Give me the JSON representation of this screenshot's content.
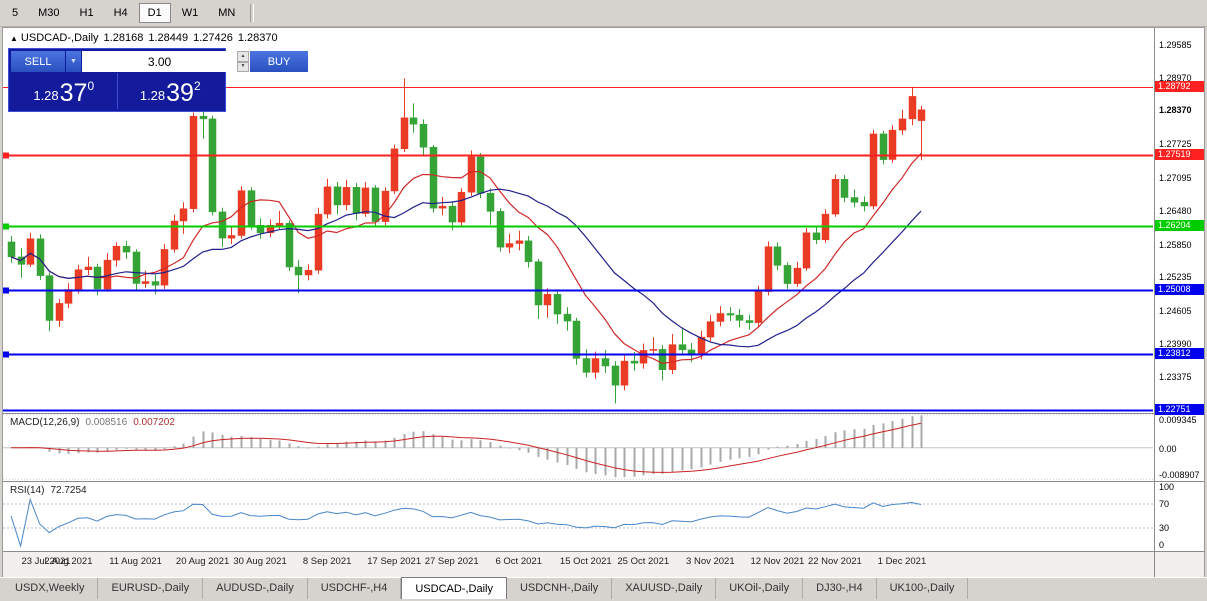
{
  "toolbar": {
    "periods": [
      "5",
      "M30",
      "H1",
      "H4",
      "D1",
      "W1",
      "MN"
    ],
    "active": "D1"
  },
  "header": {
    "collapse": "▲",
    "title": "USDCAD-,Daily",
    "o": "1.28168",
    "h": "1.28449",
    "l": "1.27426",
    "c": "1.28370"
  },
  "trade": {
    "sell": "SELL",
    "buy": "BUY",
    "lot": "3.00",
    "sell_prefix": "1.28",
    "sell_big": "37",
    "sell_sup": "0",
    "buy_prefix": "1.28",
    "buy_big": "39",
    "buy_sup": "2"
  },
  "colors": {
    "candle_up": "#ea3b24",
    "candle_down": "#36a336",
    "ma_fast": "#d02828",
    "ma_slow": "#20208c",
    "macd_hist": "#a8a8a8",
    "macd_signal": "#cc2222",
    "rsi_line": "#4a86c8",
    "hline_red": "#ff2020",
    "hline_green": "#00cc00",
    "hline_blue": "#0000ee",
    "panel_bg": "#141a9c",
    "button_blue": "#2e5ed0"
  },
  "tabs": {
    "active_index": 4,
    "items": [
      "USDX,Weekly",
      "EURUSD-,Daily",
      "AUDUSD-,Daily",
      "USDCHF-,H4",
      "USDCAD-,Daily",
      "USDCNH-,Daily",
      "XAUUSD-,Daily",
      "UKOil-,Daily",
      "DJ30-,H4",
      "UK100-,Daily"
    ]
  },
  "chart_data": {
    "type": "candlestick",
    "title": "USDCAD-,Daily",
    "main": {
      "price_max": 1.299,
      "price_min": 1.227,
      "ticks": [
        "1.29585",
        "1.28970",
        "1.27725",
        "1.27095",
        "1.26480",
        "1.25850",
        "1.25235",
        "1.24605",
        "1.23990",
        "1.23375"
      ],
      "current_price": "1.28370",
      "hlines": [
        {
          "value": 1.28792,
          "label": "1.28792",
          "color": "red",
          "width": 1,
          "handle": false
        },
        {
          "value": 1.27519,
          "label": "1.27519",
          "color": "red",
          "width": 2,
          "handle": true
        },
        {
          "value": 1.26204,
          "label": "1.26204",
          "color": "green",
          "width": 2,
          "handle": true
        },
        {
          "value": 1.25008,
          "label": "1.25008",
          "color": "blue",
          "width": 2,
          "handle": true
        },
        {
          "value": 1.23812,
          "label": "1.23812",
          "color": "blue",
          "width": 2,
          "handle": true
        },
        {
          "value": 1.22751,
          "label": "1.22751",
          "color": "blue",
          "width": 2,
          "handle": false
        }
      ],
      "x_labels": [
        {
          "i": 0,
          "t": "23 Jul 2021"
        },
        {
          "i": 6,
          "t": "2 Aug 2021"
        },
        {
          "i": 13,
          "t": "11 Aug 2021"
        },
        {
          "i": 20,
          "t": "20 Aug 2021"
        },
        {
          "i": 26,
          "t": "30 Aug 2021"
        },
        {
          "i": 33,
          "t": "8 Sep 2021"
        },
        {
          "i": 40,
          "t": "17 Sep 2021"
        },
        {
          "i": 46,
          "t": "27 Sep 2021"
        },
        {
          "i": 53,
          "t": "6 Oct 2021"
        },
        {
          "i": 60,
          "t": "15 Oct 2021"
        },
        {
          "i": 66,
          "t": "25 Oct 2021"
        },
        {
          "i": 73,
          "t": "3 Nov 2021"
        },
        {
          "i": 80,
          "t": "12 Nov 2021"
        },
        {
          "i": 86,
          "t": "22 Nov 2021"
        },
        {
          "i": 93,
          "t": "1 Dec 2021"
        }
      ],
      "ma": [
        {
          "period": 10,
          "color_key": "ma_fast"
        },
        {
          "period": 20,
          "color_key": "ma_slow"
        }
      ],
      "ohlc": [
        [
          1.259,
          1.2601,
          1.2551,
          1.2562
        ],
        [
          1.2562,
          1.2578,
          1.2523,
          1.2548
        ],
        [
          1.2548,
          1.2607,
          1.2543,
          1.2596
        ],
        [
          1.2596,
          1.2604,
          1.2519,
          1.2527
        ],
        [
          1.2527,
          1.2533,
          1.2423,
          1.2443
        ],
        [
          1.2443,
          1.2483,
          1.2431,
          1.2475
        ],
        [
          1.2475,
          1.2513,
          1.2466,
          1.2501
        ],
        [
          1.2501,
          1.2547,
          1.2493,
          1.2538
        ],
        [
          1.2538,
          1.2562,
          1.2528,
          1.2543
        ],
        [
          1.2543,
          1.2549,
          1.249,
          1.2502
        ],
        [
          1.2502,
          1.2569,
          1.2497,
          1.2556
        ],
        [
          1.2556,
          1.2589,
          1.2544,
          1.2582
        ],
        [
          1.2582,
          1.2592,
          1.2558,
          1.2571
        ],
        [
          1.2571,
          1.2576,
          1.25,
          1.2512
        ],
        [
          1.2512,
          1.2536,
          1.2504,
          1.2516
        ],
        [
          1.2516,
          1.2528,
          1.2492,
          1.2509
        ],
        [
          1.2509,
          1.2586,
          1.2502,
          1.2576
        ],
        [
          1.2576,
          1.2641,
          1.257,
          1.2629
        ],
        [
          1.2629,
          1.2664,
          1.2605,
          1.2652
        ],
        [
          1.2652,
          1.2832,
          1.2645,
          1.2825
        ],
        [
          1.2825,
          1.2845,
          1.2783,
          1.282
        ],
        [
          1.282,
          1.2826,
          1.264,
          1.2646
        ],
        [
          1.2646,
          1.2654,
          1.258,
          1.2597
        ],
        [
          1.2597,
          1.2618,
          1.2586,
          1.2602
        ],
        [
          1.2602,
          1.2694,
          1.2596,
          1.2686
        ],
        [
          1.2686,
          1.2692,
          1.2613,
          1.2621
        ],
        [
          1.2621,
          1.2634,
          1.2596,
          1.2607
        ],
        [
          1.2607,
          1.2632,
          1.2599,
          1.2621
        ],
        [
          1.2621,
          1.2648,
          1.2612,
          1.2625
        ],
        [
          1.2625,
          1.263,
          1.2535,
          1.2543
        ],
        [
          1.2543,
          1.2556,
          1.2494,
          1.2528
        ],
        [
          1.2528,
          1.2548,
          1.2518,
          1.2537
        ],
        [
          1.2537,
          1.2654,
          1.253,
          1.2642
        ],
        [
          1.2642,
          1.2708,
          1.2634,
          1.2693
        ],
        [
          1.2693,
          1.2702,
          1.2642,
          1.2659
        ],
        [
          1.2659,
          1.2706,
          1.2649,
          1.2692
        ],
        [
          1.2692,
          1.27,
          1.263,
          1.2643
        ],
        [
          1.2643,
          1.2702,
          1.2637,
          1.2691
        ],
        [
          1.2691,
          1.2696,
          1.2618,
          1.2628
        ],
        [
          1.2628,
          1.2692,
          1.2621,
          1.2685
        ],
        [
          1.2685,
          1.2772,
          1.2679,
          1.2764
        ],
        [
          1.2764,
          1.2896,
          1.2758,
          1.2822
        ],
        [
          1.2822,
          1.2849,
          1.2794,
          1.281
        ],
        [
          1.281,
          1.2819,
          1.2752,
          1.2767
        ],
        [
          1.2767,
          1.2771,
          1.2645,
          1.2653
        ],
        [
          1.2653,
          1.2674,
          1.264,
          1.2657
        ],
        [
          1.2657,
          1.2666,
          1.2612,
          1.2627
        ],
        [
          1.2627,
          1.269,
          1.2619,
          1.2683
        ],
        [
          1.2683,
          1.2761,
          1.2676,
          1.2749
        ],
        [
          1.2749,
          1.2756,
          1.2672,
          1.2681
        ],
        [
          1.2681,
          1.269,
          1.2622,
          1.2647
        ],
        [
          1.2647,
          1.2653,
          1.2572,
          1.258
        ],
        [
          1.258,
          1.2605,
          1.2569,
          1.2587
        ],
        [
          1.2587,
          1.2611,
          1.2574,
          1.2592
        ],
        [
          1.2592,
          1.2601,
          1.2542,
          1.2553
        ],
        [
          1.2553,
          1.2558,
          1.2446,
          1.2472
        ],
        [
          1.2472,
          1.2503,
          1.2448,
          1.2492
        ],
        [
          1.2492,
          1.25,
          1.2437,
          1.2455
        ],
        [
          1.2455,
          1.2468,
          1.2424,
          1.2442
        ],
        [
          1.2442,
          1.2448,
          1.236,
          1.2372
        ],
        [
          1.2372,
          1.2389,
          1.2337,
          1.2346
        ],
        [
          1.2346,
          1.2385,
          1.2334,
          1.2372
        ],
        [
          1.2372,
          1.2388,
          1.2345,
          1.2358
        ],
        [
          1.2358,
          1.2367,
          1.2288,
          1.2322
        ],
        [
          1.2322,
          1.2378,
          1.2312,
          1.2367
        ],
        [
          1.2367,
          1.2384,
          1.2349,
          1.2363
        ],
        [
          1.2363,
          1.24,
          1.2353,
          1.2387
        ],
        [
          1.2387,
          1.2412,
          1.2377,
          1.2389
        ],
        [
          1.2389,
          1.2397,
          1.2331,
          1.2351
        ],
        [
          1.2351,
          1.2418,
          1.2343,
          1.2398
        ],
        [
          1.2398,
          1.243,
          1.2379,
          1.2388
        ],
        [
          1.2388,
          1.2401,
          1.2365,
          1.2378
        ],
        [
          1.2378,
          1.2424,
          1.237,
          1.2412
        ],
        [
          1.2412,
          1.2453,
          1.2404,
          1.2441
        ],
        [
          1.2441,
          1.247,
          1.2432,
          1.2456
        ],
        [
          1.2456,
          1.2468,
          1.2442,
          1.2453
        ],
        [
          1.2453,
          1.2465,
          1.243,
          1.2443
        ],
        [
          1.2443,
          1.2454,
          1.2426,
          1.2439
        ],
        [
          1.2439,
          1.2508,
          1.2432,
          1.2497
        ],
        [
          1.2497,
          1.2591,
          1.249,
          1.2581
        ],
        [
          1.2581,
          1.2589,
          1.2537,
          1.2546
        ],
        [
          1.2546,
          1.2552,
          1.2502,
          1.2512
        ],
        [
          1.2512,
          1.2553,
          1.2506,
          1.2541
        ],
        [
          1.2541,
          1.2616,
          1.2536,
          1.2607
        ],
        [
          1.2607,
          1.2618,
          1.2586,
          1.2594
        ],
        [
          1.2594,
          1.2651,
          1.2588,
          1.2642
        ],
        [
          1.2642,
          1.2716,
          1.2637,
          1.2707
        ],
        [
          1.2707,
          1.2715,
          1.2664,
          1.2673
        ],
        [
          1.2673,
          1.2688,
          1.2655,
          1.2664
        ],
        [
          1.2664,
          1.2675,
          1.2647,
          1.2657
        ],
        [
          1.2657,
          1.28,
          1.2651,
          1.2792
        ],
        [
          1.2792,
          1.2798,
          1.2735,
          1.2744
        ],
        [
          1.2744,
          1.2808,
          1.2738,
          1.2799
        ],
        [
          1.2799,
          1.2837,
          1.279,
          1.282
        ],
        [
          1.282,
          1.288,
          1.2808,
          1.2862
        ],
        [
          1.28168,
          1.28449,
          1.27426,
          1.2837
        ]
      ]
    },
    "macd": {
      "label": "MACD(12,26,9)",
      "value_main": "0.008516",
      "value_signal": "0.007202",
      "fast": 12,
      "slow": 26,
      "signal": 9,
      "y_max": 0.0095,
      "y_min": -0.0091,
      "axis": [
        {
          "v": 0.009345,
          "t": "0.009345"
        },
        {
          "v": 0,
          "t": "0.00"
        },
        {
          "v": -0.008907,
          "t": "-0.008907"
        }
      ]
    },
    "rsi": {
      "label": "RSI(14)",
      "value": "72.7254",
      "period": 14,
      "levels": [
        70,
        30
      ],
      "axis": [
        {
          "v": 100,
          "t": "100"
        },
        {
          "v": 70,
          "t": "70"
        },
        {
          "v": 30,
          "t": "30"
        },
        {
          "v": 0,
          "t": "0"
        }
      ]
    }
  }
}
